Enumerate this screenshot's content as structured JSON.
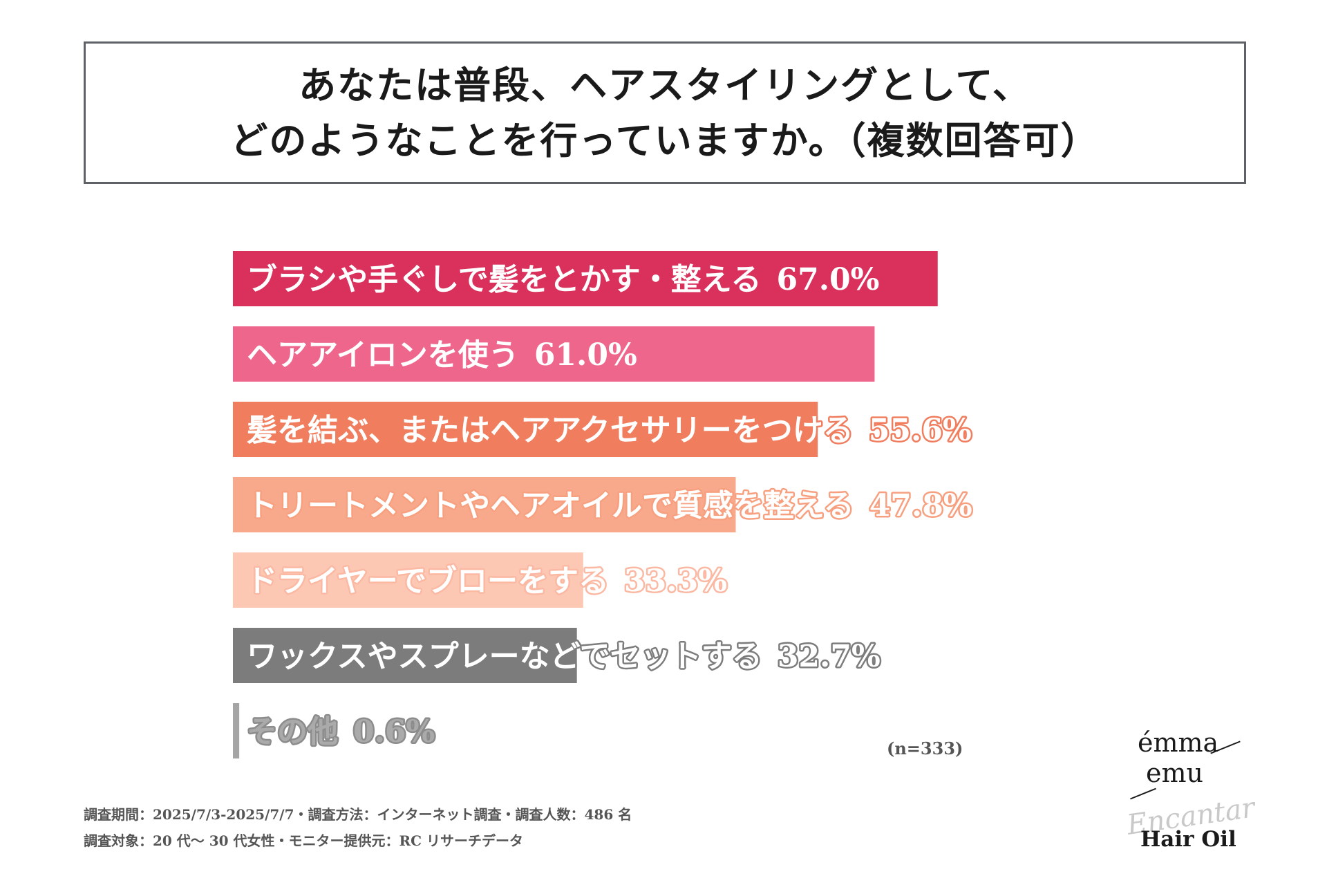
{
  "title": {
    "line1": "あなたは普段、ヘアスタイリングとして、",
    "line2": "どのようなことを行っていますか。（複数回答可）"
  },
  "chart_data": {
    "type": "bar",
    "orientation": "horizontal",
    "value_unit": "%",
    "xlim": [
      0,
      100
    ],
    "grid": false,
    "categories": [
      "ブラシや手ぐしで髪をとかす・整える",
      "ヘアアイロンを使う",
      "髪を結ぶ、またはヘアアクセサリーをつける",
      "トリートメントやヘアオイルで質感を整える",
      "ドライヤーでブローをする",
      "ワックスやスプレーなどでセットする",
      "その他"
    ],
    "values": [
      67.0,
      61.0,
      55.6,
      47.8,
      33.3,
      32.7,
      0.6
    ],
    "value_labels": [
      "67.0%",
      "61.0%",
      "55.6%",
      "47.8%",
      "33.3%",
      "32.7%",
      "0.6%"
    ],
    "bar_colors": [
      "#d9305c",
      "#ee668c",
      "#f07e5e",
      "#f9a98b",
      "#fcc8b4",
      "#7c7c7c",
      "#a5a5a5"
    ],
    "label_colors": [
      "#ffffff",
      "#ffffff",
      "#ffffff",
      "#ffffff",
      "#ffffff",
      "#ffffff",
      "#aaaaaa"
    ],
    "outline_colors": [
      "#d9305c",
      "#ee668c",
      "#f07e5e",
      "#f7a080",
      "#fbb8a2",
      "#7c7c7c",
      "#8c8c8c"
    ]
  },
  "sample_size": "(n=333)",
  "notes": {
    "line1": "調査期間：2025/7/3-2025/7/7・調査方法：インターネット調査・調査人数：486 名",
    "line2": "調査対象：20 代～ 30 代女性・モニター提供元：RC リサーチデータ"
  },
  "logo": {
    "brand_line1": "émma",
    "brand_line2": "emu",
    "script": "Encantar",
    "product": "Hair Oil"
  }
}
